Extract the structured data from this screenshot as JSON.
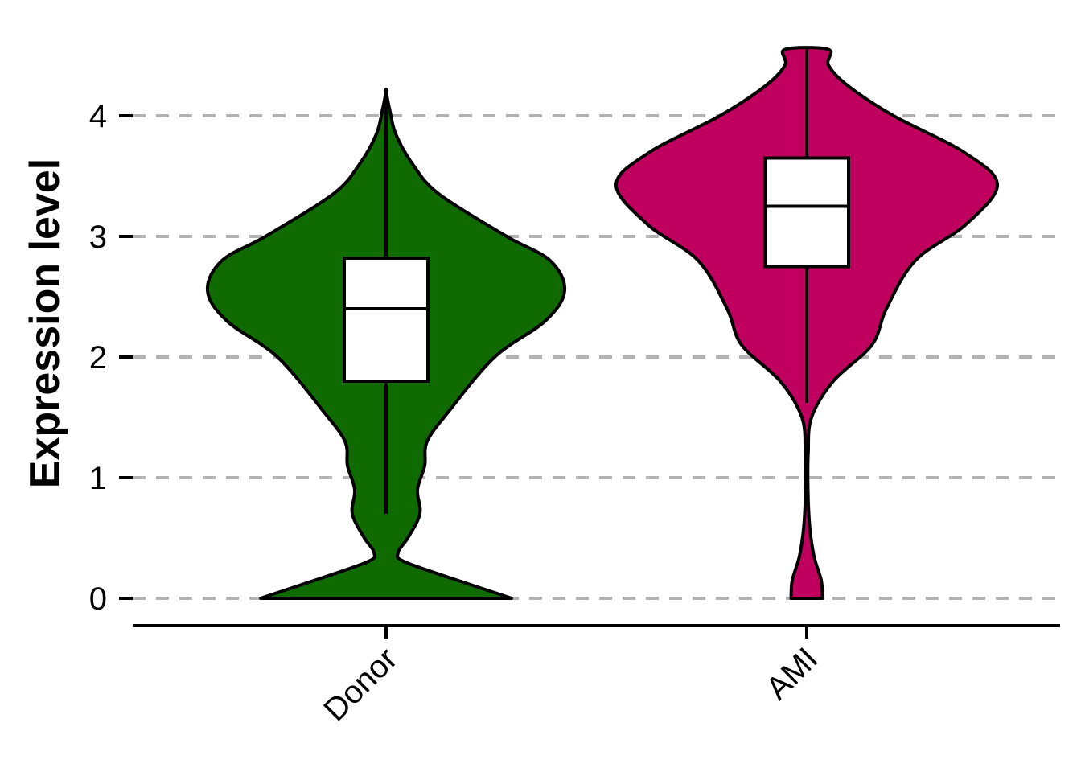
{
  "chart_data": {
    "type": "violin",
    "ylabel": "Expression level",
    "xlabel": "",
    "ylim": [
      -0.25,
      4.55
    ],
    "yticks": [
      0,
      1,
      2,
      3,
      4
    ],
    "grid": "horizontal-dashed",
    "categories": [
      "Donor",
      "AMI"
    ],
    "groups": [
      {
        "name": "Donor",
        "color": "#0F6A00",
        "box": {
          "lower_whisker": 0.7,
          "q1": 1.8,
          "median": 2.4,
          "q3": 2.82,
          "upper_whisker": 4.2
        },
        "range": [
          0,
          4.2
        ],
        "density": [
          [
            0,
            0.52
          ],
          [
            0.12,
            0.34
          ],
          [
            0.3,
            0.08
          ],
          [
            0.38,
            0.05
          ],
          [
            0.5,
            0.09
          ],
          [
            0.7,
            0.14
          ],
          [
            0.9,
            0.13
          ],
          [
            1.1,
            0.16
          ],
          [
            1.3,
            0.17
          ],
          [
            1.55,
            0.26
          ],
          [
            2.0,
            0.45
          ],
          [
            2.3,
            0.66
          ],
          [
            2.55,
            0.74
          ],
          [
            2.8,
            0.68
          ],
          [
            3.0,
            0.5
          ],
          [
            3.35,
            0.22
          ],
          [
            3.6,
            0.11
          ],
          [
            3.85,
            0.04
          ],
          [
            4.05,
            0.015
          ],
          [
            4.2,
            0.0
          ]
        ]
      },
      {
        "name": "AMI",
        "color": "#C0005E",
        "box": {
          "lower_whisker": 1.62,
          "q1": 2.75,
          "median": 3.25,
          "q3": 3.65,
          "upper_whisker": 4.55
        },
        "range": [
          0,
          4.55
        ],
        "density": [
          [
            0,
            0.065
          ],
          [
            0.15,
            0.06
          ],
          [
            0.35,
            0.03
          ],
          [
            0.6,
            0.012
          ],
          [
            0.9,
            0.005
          ],
          [
            1.2,
            0.006
          ],
          [
            1.5,
            0.02
          ],
          [
            1.8,
            0.11
          ],
          [
            2.1,
            0.27
          ],
          [
            2.4,
            0.33
          ],
          [
            2.8,
            0.45
          ],
          [
            3.1,
            0.66
          ],
          [
            3.43,
            0.79
          ],
          [
            3.7,
            0.65
          ],
          [
            4.0,
            0.36
          ],
          [
            4.25,
            0.17
          ],
          [
            4.42,
            0.09
          ],
          [
            4.55,
            0.09
          ]
        ]
      }
    ]
  }
}
